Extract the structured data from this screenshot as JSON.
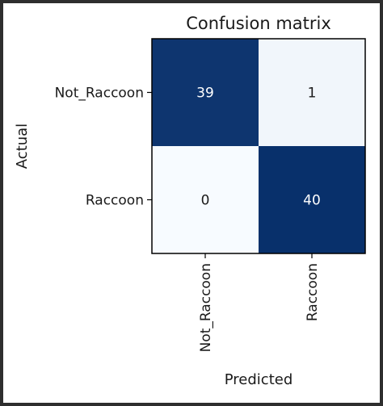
{
  "chart_data": {
    "type": "heatmap",
    "title": "Confusion matrix",
    "xlabel": "Predicted",
    "ylabel": "Actual",
    "x_categories": [
      "Not_Raccoon",
      "Raccoon"
    ],
    "y_categories": [
      "Not_Raccoon",
      "Raccoon"
    ],
    "values": [
      [
        39,
        1
      ],
      [
        0,
        40
      ]
    ],
    "value_labels": [
      [
        "39",
        "1"
      ],
      [
        "0",
        "40"
      ]
    ],
    "vmin": 0,
    "vmax": 40,
    "colormap": {
      "low": "#f7fbff",
      "high": "#08306b"
    },
    "grid": false
  }
}
